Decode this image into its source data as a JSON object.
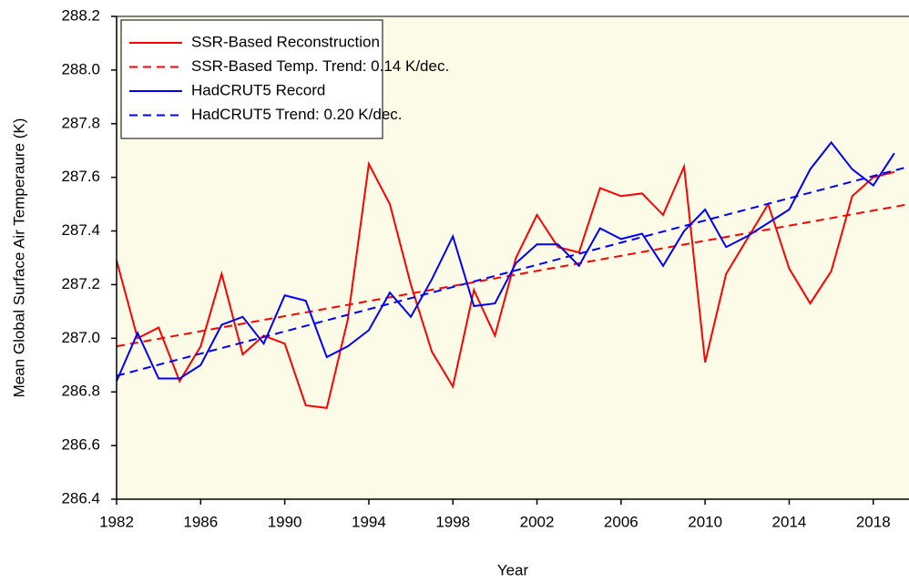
{
  "chart_data": {
    "type": "line",
    "xlabel": "Year",
    "ylabel": "Mean Global Surface Air Temperaure (K)",
    "xlim": [
      1982,
      2019.7
    ],
    "ylim": [
      286.4,
      288.2
    ],
    "xticks": [
      1982,
      1986,
      1990,
      1994,
      1998,
      2002,
      2006,
      2010,
      2014,
      2018
    ],
    "yticks": [
      286.4,
      286.6,
      286.8,
      {
        "value": 287,
        "label": "287.0"
      },
      287.2,
      287.4,
      287.6,
      287.8,
      {
        "value": 288,
        "label": "288.0"
      },
      288.2
    ],
    "plot_background": "#fbfbe8",
    "legend": "upper-left",
    "x": [
      1982,
      1983,
      1984,
      1985,
      1986,
      1987,
      1988,
      1989,
      1990,
      1991,
      1992,
      1993,
      1994,
      1995,
      1996,
      1997,
      1998,
      1999,
      2000,
      2001,
      2002,
      2003,
      2004,
      2005,
      2006,
      2007,
      2008,
      2009,
      2010,
      2011,
      2012,
      2013,
      2014,
      2015,
      2016,
      2017,
      2018,
      2019
    ],
    "series": [
      {
        "name": "SSR-Based Reconstruction",
        "color": "#ff0000",
        "dashed": false,
        "values": [
          287.29,
          287.0,
          287.04,
          286.84,
          286.97,
          287.24,
          286.94,
          287.01,
          286.98,
          286.75,
          286.74,
          287.07,
          287.65,
          287.5,
          287.2,
          286.95,
          286.82,
          287.18,
          287.01,
          287.3,
          287.46,
          287.34,
          287.32,
          287.56,
          287.53,
          287.54,
          287.46,
          287.64,
          286.91,
          287.24,
          287.37,
          287.5,
          287.26,
          287.13,
          287.25,
          287.53,
          287.6,
          287.62
        ]
      },
      {
        "name": "SSR-Based Temp. Trend: 0.14 K/dec.",
        "color": "#ff0000",
        "dashed": true,
        "x": [
          1982,
          2019.7
        ],
        "values": [
          286.97,
          287.5
        ]
      },
      {
        "name": "HadCRUT5 Record",
        "color": "#0000ff",
        "dashed": false,
        "values": [
          286.84,
          287.02,
          286.85,
          286.85,
          286.9,
          287.05,
          287.08,
          286.98,
          287.16,
          287.14,
          286.93,
          286.97,
          287.03,
          287.17,
          287.08,
          287.22,
          287.38,
          287.12,
          287.13,
          287.28,
          287.35,
          287.35,
          287.27,
          287.41,
          287.37,
          287.39,
          287.27,
          287.4,
          287.48,
          287.34,
          287.38,
          287.43,
          287.48,
          287.63,
          287.73,
          287.63,
          287.57,
          287.69
        ]
      },
      {
        "name": "HadCRUT5 Trend: 0.20 K/dec.",
        "color": "#0000ff",
        "dashed": true,
        "x": [
          1982,
          2019.7
        ],
        "values": [
          286.86,
          287.64
        ]
      }
    ]
  }
}
